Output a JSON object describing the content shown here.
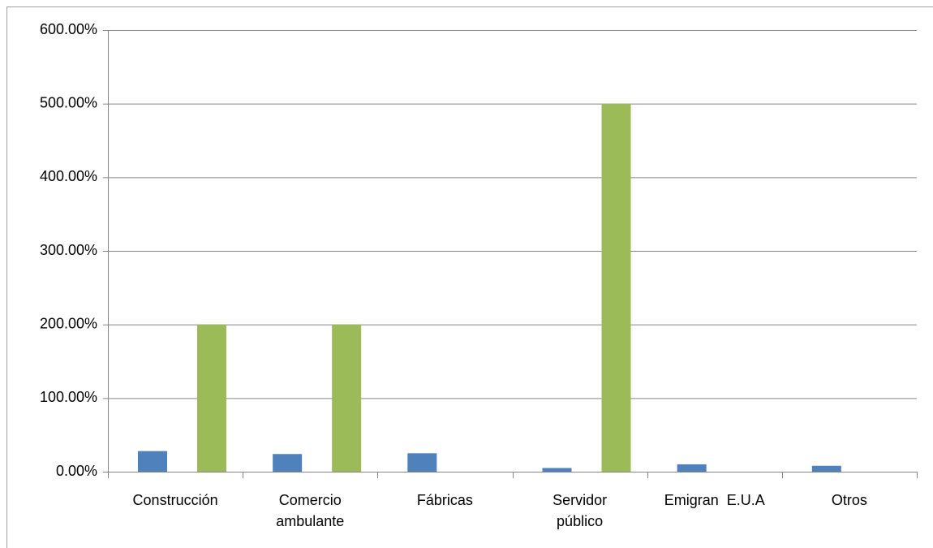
{
  "chart_data": {
    "type": "bar",
    "categories": [
      "Construcción",
      "Comercio ambulante",
      "Fábricas",
      "Servidor público",
      "Emigran  E.U.A",
      "Otros"
    ],
    "series": [
      {
        "color": "#4f81bd",
        "values": [
          28,
          24,
          25,
          5,
          10,
          8
        ]
      },
      {
        "color": "#9bbb59",
        "values": [
          200,
          200,
          0,
          500,
          0,
          0
        ]
      }
    ],
    "ylim": [
      0,
      600
    ],
    "yticks": [
      {
        "value": 0,
        "label": "0.00%"
      },
      {
        "value": 100,
        "label": "100.00%"
      },
      {
        "value": 200,
        "label": "200.00%"
      },
      {
        "value": 300,
        "label": "300.00%"
      },
      {
        "value": 400,
        "label": "400.00%"
      },
      {
        "value": 500,
        "label": "500.00%"
      },
      {
        "value": 600,
        "label": "600.00%"
      }
    ],
    "grid": true
  }
}
